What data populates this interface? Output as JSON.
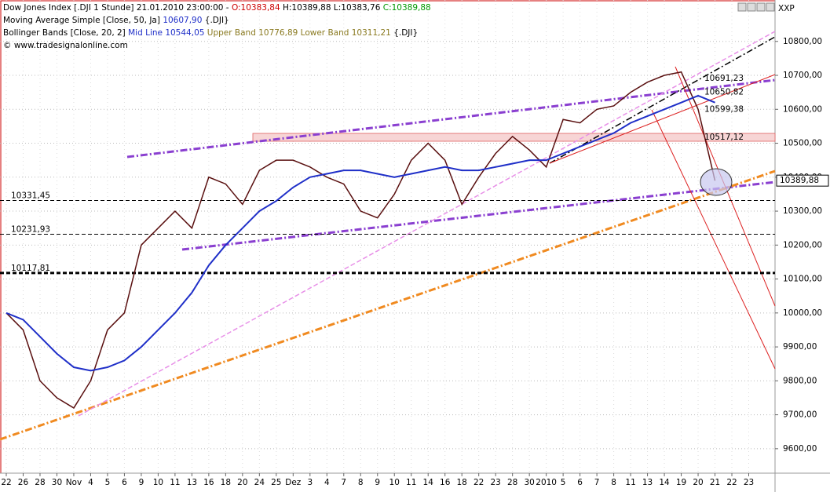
{
  "chart_data": {
    "type": "line",
    "title": "Dow Jones Index [.DJI  1 Stunde] 21.01.2010 23:00:00 -",
    "ohlc": [
      "O:10383,84",
      "H:10389,88",
      "L:10383,76",
      "C:10389,88"
    ],
    "ohlc_colors": [
      "#cc0000",
      "#000000",
      "#000000",
      "#009900"
    ],
    "indicators": [
      [
        "Moving Average Simple [Close, 50, Ja]",
        "10607,90",
        "{.DJI}"
      ],
      [
        "Bollinger Bands [Close, 20, 2]",
        "Mid Line 10544,05",
        "Upper Band 10776,89",
        "Lower Band 10311,21",
        "{.DJI}"
      ]
    ],
    "source": "© www.tradesignalonline.com",
    "axis_name": "XXP",
    "categories": [
      "22",
      "26",
      "28",
      "30",
      "Nov",
      "4",
      "5",
      "6",
      "9",
      "10",
      "11",
      "13",
      "16",
      "18",
      "20",
      "24",
      "25",
      "Dez",
      "3",
      "4",
      "7",
      "8",
      "9",
      "10",
      "11",
      "14",
      "16",
      "18",
      "22",
      "23",
      "28",
      "30",
      "2010",
      "5",
      "6",
      "7",
      "8",
      "11",
      "13",
      "14",
      "19",
      "20",
      "21",
      "22",
      "23"
    ],
    "series": [
      {
        "name": "Close",
        "color": "#5a1010",
        "values": [
          10000,
          9950,
          9800,
          9750,
          9720,
          9800,
          9950,
          10000,
          10200,
          10250,
          10300,
          10250,
          10400,
          10380,
          10320,
          10420,
          10450,
          10450,
          10430,
          10400,
          10380,
          10300,
          10280,
          10350,
          10450,
          10500,
          10450,
          10320,
          10400,
          10470,
          10520,
          10480,
          10430,
          10570,
          10560,
          10600,
          10610,
          10650,
          10680,
          10700,
          10710,
          10600,
          10389.88,
          null,
          null
        ]
      },
      {
        "name": "Moving Average Simple",
        "color": "#1f2fc8",
        "values": [
          10000,
          9980,
          9930,
          9880,
          9840,
          9830,
          9840,
          9860,
          9900,
          9950,
          10000,
          10060,
          10140,
          10200,
          10250,
          10300,
          10330,
          10370,
          10400,
          10410,
          10420,
          10420,
          10410,
          10400,
          10410,
          10420,
          10430,
          10420,
          10420,
          10430,
          10440,
          10450,
          10450,
          10470,
          10490,
          10510,
          10530,
          10560,
          10580,
          10600,
          10620,
          10640,
          10620,
          null,
          null
        ]
      }
    ],
    "ylim": [
      9528,
      10922
    ],
    "yticks": [
      {
        "value": 9600,
        "label": "9600,00"
      },
      {
        "value": 9700,
        "label": "9700,00"
      },
      {
        "value": 9800,
        "label": "9800,00"
      },
      {
        "value": 9900,
        "label": "9900,00"
      },
      {
        "value": 10000,
        "label": "10000,00"
      },
      {
        "value": 10100,
        "label": "10100,00"
      },
      {
        "value": 10200,
        "label": "10200,00"
      },
      {
        "value": 10300,
        "label": "10300,00"
      },
      {
        "value": 10400,
        "label": "10400,00"
      },
      {
        "value": 10500,
        "label": "10500,00"
      },
      {
        "value": 10600,
        "label": "10600,00"
      },
      {
        "value": 10700,
        "label": "10700,00"
      },
      {
        "value": 10800,
        "label": "10800,00"
      }
    ],
    "grid": true,
    "levels": [
      {
        "value": 10331.45,
        "label": "10331,45",
        "width": 1
      },
      {
        "value": 10231.93,
        "label": "10231,93",
        "width": 1
      },
      {
        "value": 10117.81,
        "label": "10117,81",
        "width": 3
      }
    ],
    "right_labels": [
      {
        "value": 10691.23,
        "label": "10691,23",
        "color": "#555555"
      },
      {
        "value": 10650.82,
        "label": "10650,82",
        "color": "#9966cc"
      },
      {
        "value": 10599.38,
        "label": "10599,38",
        "color": "#dd2222"
      },
      {
        "value": 10517.12,
        "label": "10517,12",
        "color": "#dd2222"
      }
    ],
    "last_price": {
      "value": 10389.88,
      "label": "10389,88"
    }
  }
}
